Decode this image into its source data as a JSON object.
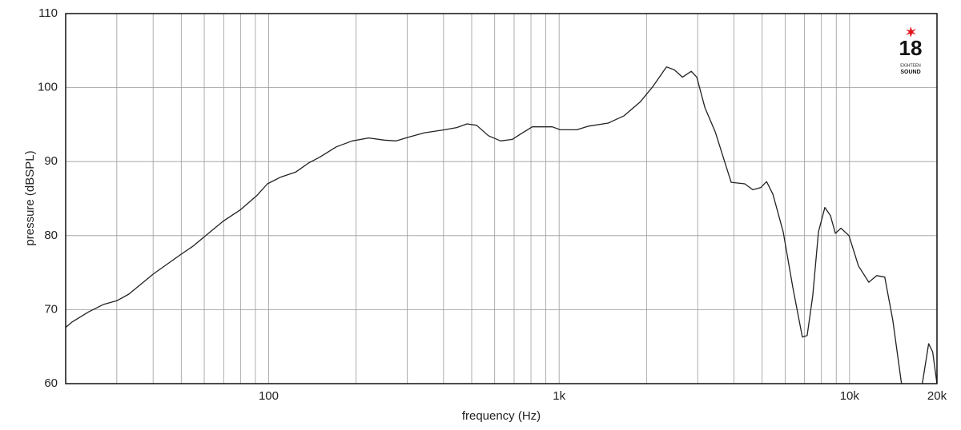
{
  "chart_data": {
    "type": "line",
    "xlabel": "frequency (Hz)",
    "ylabel": "pressure (dBSPL)",
    "xscale": "log",
    "grid": true,
    "xlim": [
      20,
      20000
    ],
    "ylim": [
      60,
      110
    ],
    "xticks": [
      100,
      {
        "value": 1000,
        "label": "1k"
      },
      {
        "value": 10000,
        "label": "10k"
      },
      {
        "value": 20000,
        "label": "20k"
      }
    ],
    "xminor": [
      30,
      40,
      50,
      60,
      70,
      80,
      90,
      200,
      300,
      400,
      500,
      600,
      700,
      800,
      900,
      2000,
      3000,
      4000,
      5000,
      6000,
      7000,
      8000,
      9000
    ],
    "yticks": [
      60,
      70,
      80,
      90,
      100,
      110
    ],
    "series": [
      {
        "color": "#222222",
        "x": [
          20,
          21,
          24,
          27,
          30,
          33,
          40,
          50,
          55,
          62,
          70,
          80,
          91,
          99,
          110,
          124,
          137,
          150,
          171,
          194,
          221,
          250,
          275,
          303,
          344,
          403,
          444,
          482,
          520,
          571,
          629,
          690,
          735,
          808,
          948,
          1010,
          1150,
          1264,
          1476,
          1675,
          1905,
          2098,
          2342,
          2494,
          2659,
          2852,
          2979,
          3176,
          3449,
          3720,
          3913,
          4357,
          4644,
          4950,
          5178,
          5446,
          5911,
          6377,
          6879,
          7148,
          7473,
          7815,
          8222,
          8598,
          8934,
          9342,
          9952,
          10733,
          11649,
          12410,
          13220,
          14083,
          15099,
          16500,
          17809,
          18727,
          19328,
          20000
        ],
        "values": [
          67.6,
          68.3,
          69.7,
          70.7,
          71.2,
          72.1,
          74.8,
          77.5,
          78.6,
          80.3,
          82.0,
          83.5,
          85.4,
          87.0,
          87.9,
          88.6,
          89.8,
          90.6,
          92.0,
          92.8,
          93.2,
          92.9,
          92.8,
          93.3,
          93.9,
          94.3,
          94.6,
          95.1,
          94.9,
          93.5,
          92.8,
          93.0,
          93.7,
          94.7,
          94.7,
          94.3,
          94.3,
          94.8,
          95.2,
          96.2,
          98.1,
          100.1,
          102.8,
          102.4,
          101.4,
          102.2,
          101.4,
          97.3,
          94.0,
          89.9,
          87.2,
          87.0,
          86.2,
          86.5,
          87.3,
          85.6,
          80.5,
          73.0,
          66.3,
          66.5,
          71.9,
          80.5,
          83.8,
          82.7,
          80.3,
          81.0,
          80.0,
          75.9,
          73.7,
          74.6,
          74.4,
          68.6,
          60.0,
          null,
          60.0,
          65.4,
          64.3,
          60.0
        ]
      }
    ]
  },
  "logo": {
    "number": "18",
    "line1": "EIGHTEEN",
    "line2": "SOUND"
  }
}
